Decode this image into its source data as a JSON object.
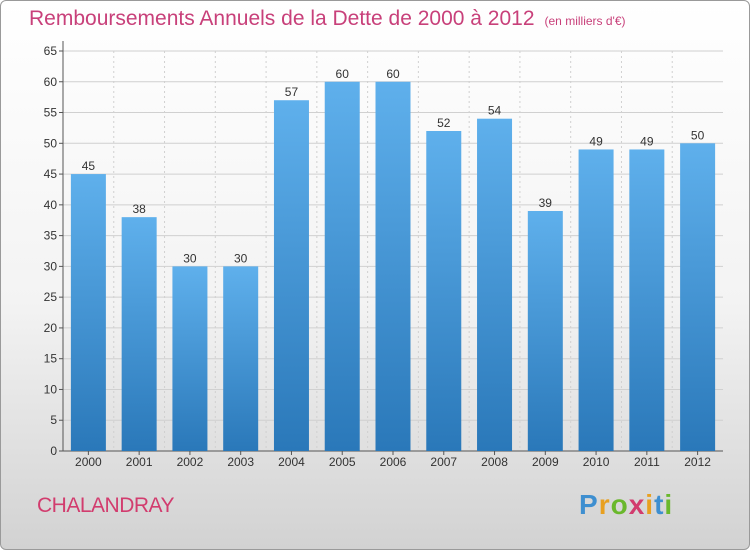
{
  "header": {
    "title": "Remboursements Annuels de la Dette de 2000 à 2012",
    "subtitle": "(en milliers d'€)"
  },
  "footer": {
    "commune": "CHALANDRAY",
    "logo": "Proxiti"
  },
  "colors": {
    "bar_top": "#5fb0ec",
    "bar_bottom": "#2a78b9",
    "title": "#c8407a",
    "grid": "#d0d0d0"
  },
  "chart_data": {
    "type": "bar",
    "title": "Remboursements Annuels de la Dette de 2000 à 2012",
    "xlabel": "",
    "ylabel": "",
    "categories": [
      "2000",
      "2001",
      "2002",
      "2003",
      "2004",
      "2005",
      "2006",
      "2007",
      "2008",
      "2009",
      "2010",
      "2011",
      "2012"
    ],
    "values": [
      45,
      38,
      30,
      30,
      57,
      60,
      60,
      52,
      54,
      39,
      49,
      49,
      50
    ],
    "ylim": [
      0,
      65
    ],
    "yticks": [
      0,
      5,
      10,
      15,
      20,
      25,
      30,
      35,
      40,
      45,
      50,
      55,
      60,
      65
    ],
    "grid": true,
    "data_labels": true
  }
}
